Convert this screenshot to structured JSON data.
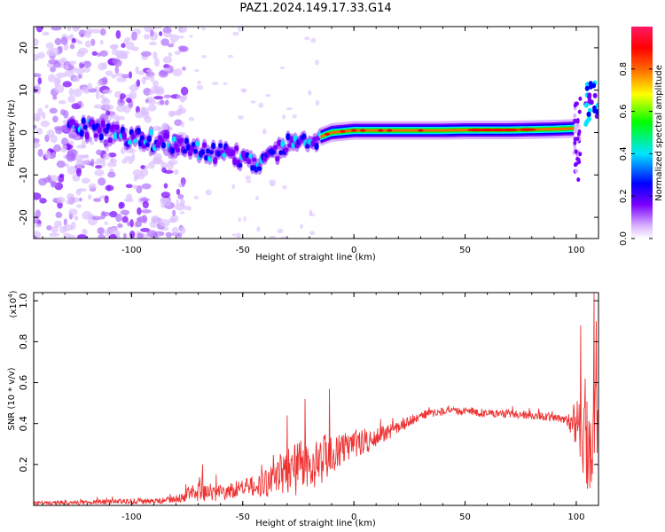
{
  "title": "PAZ1.2024.149.17.33.G14",
  "chart_data": [
    {
      "type": "heatmap",
      "xlabel": "Height of straight line (km)",
      "ylabel": "Frequency (Hz)",
      "xlim": [
        -144,
        110
      ],
      "ylim": [
        -25,
        25
      ],
      "xticks": [
        -100,
        -50,
        0,
        50,
        100
      ],
      "yticks": [
        20,
        10,
        0,
        -10,
        -20
      ],
      "colorbar": {
        "label": "Normalized spectral amplitude",
        "range": [
          0,
          1
        ],
        "ticks": [
          0.0,
          0.2,
          0.4,
          0.6,
          0.8
        ],
        "colormap": [
          "#ffffff",
          "#d9b3ff",
          "#7a00ff",
          "#0000ff",
          "#00e5ff",
          "#00ff00",
          "#ffff00",
          "#ff6600",
          "#ff0000",
          "#ff1a66"
        ]
      },
      "ridge": {
        "x": [
          -120,
          -110,
          -100,
          -90,
          -80,
          -70,
          -60,
          -50,
          -40,
          -30,
          -20,
          -10,
          0,
          10,
          20,
          30,
          40,
          50,
          60,
          70,
          80,
          90,
          100,
          106
        ],
        "y": [
          1,
          0,
          -1,
          -2,
          -3,
          -4,
          -5,
          -6,
          -7,
          -3,
          -2,
          0,
          0.5,
          0.5,
          0.5,
          0.5,
          0.5,
          0.6,
          0.6,
          0.6,
          0.7,
          0.8,
          1,
          5
        ]
      },
      "scatter_region": {
        "x_range": [
          -144,
          -82
        ],
        "y_range": [
          -25,
          25
        ]
      }
    },
    {
      "type": "line",
      "xlabel": "Height of straight line (km)",
      "ylabel": "SNR (10 * v/v)",
      "yscale_label": "(x10",
      "yscale_exp": "4",
      "yscale_close": ")",
      "xlim": [
        -144,
        110
      ],
      "ylim": [
        0,
        1.04
      ],
      "xticks": [
        -100,
        -50,
        0,
        50,
        100
      ],
      "yticks": [
        0.2,
        0.4,
        0.6,
        0.8,
        1.0
      ],
      "line_color": "#ee3333",
      "trend": {
        "x": [
          -144,
          -120,
          -100,
          -90,
          -80,
          -70,
          -60,
          -50,
          -40,
          -30,
          -20,
          -10,
          0,
          10,
          20,
          30,
          40,
          50,
          60,
          70,
          80,
          90,
          96,
          100,
          104,
          108,
          110
        ],
        "y": [
          0.01,
          0.015,
          0.02,
          0.02,
          0.03,
          0.07,
          0.06,
          0.09,
          0.1,
          0.17,
          0.2,
          0.25,
          0.3,
          0.33,
          0.38,
          0.44,
          0.46,
          0.46,
          0.45,
          0.45,
          0.44,
          0.43,
          0.42,
          0.4,
          0.3,
          0.3,
          0.4
        ]
      },
      "noise_amp": {
        "x": [
          -144,
          -80,
          -70,
          -50,
          -35,
          -25,
          -15,
          -5,
          5,
          20,
          35,
          95,
          100,
          104,
          108,
          110
        ],
        "y": [
          0.01,
          0.015,
          0.05,
          0.04,
          0.08,
          0.14,
          0.12,
          0.08,
          0.06,
          0.03,
          0.02,
          0.02,
          0.12,
          0.18,
          0.35,
          0.2
        ]
      },
      "spikes": [
        {
          "x": -68,
          "y": 0.2
        },
        {
          "x": -30,
          "y": 0.44
        },
        {
          "x": -22,
          "y": 0.52
        },
        {
          "x": -11,
          "y": 0.57
        },
        {
          "x": 102,
          "y": 0.88
        },
        {
          "x": 104,
          "y": 0.62
        },
        {
          "x": 108,
          "y": 1.04
        },
        {
          "x": 109,
          "y": 0.9
        }
      ]
    }
  ]
}
